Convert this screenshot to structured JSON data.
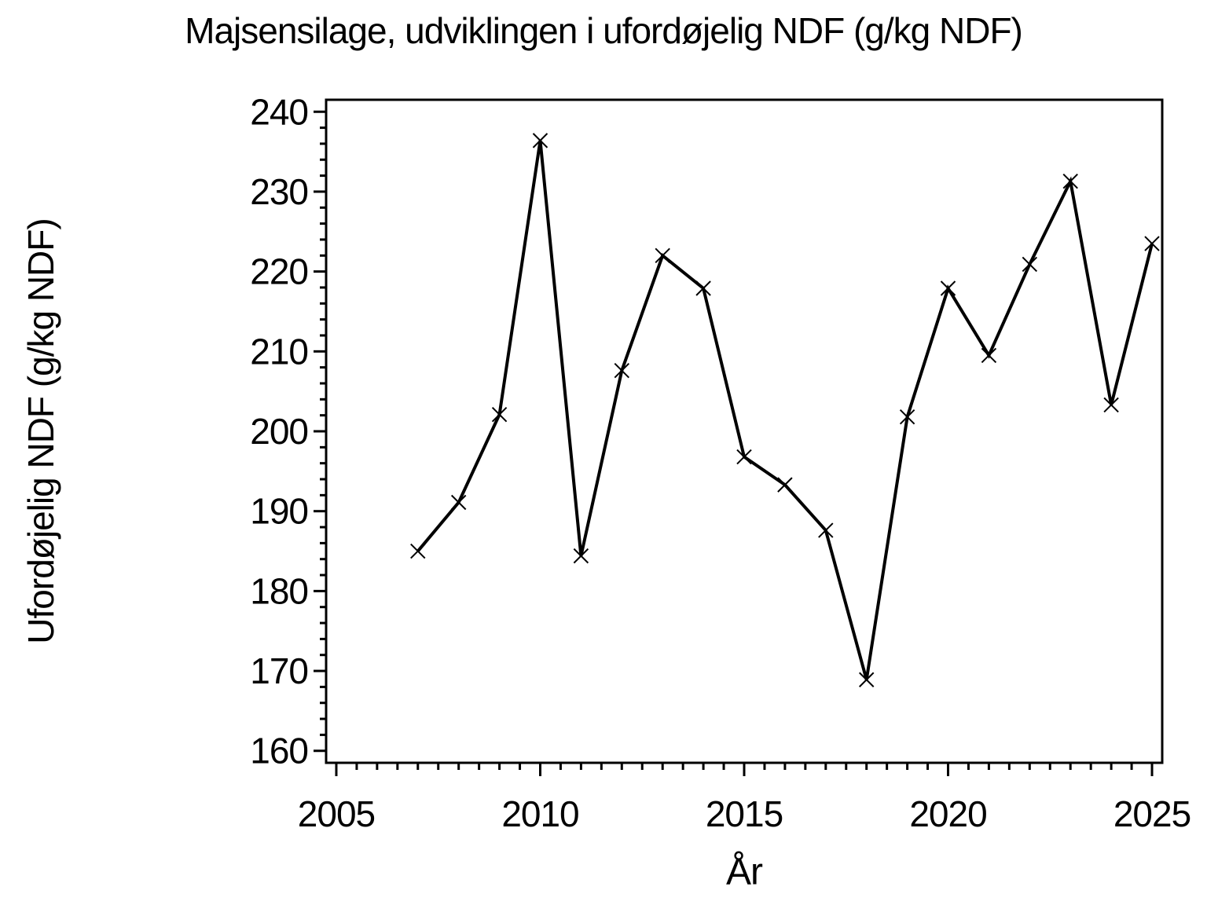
{
  "chart_data": {
    "type": "line",
    "title": "Majsensilage, udviklingen i ufordøjelig NDF (g/kg NDF)",
    "xlabel": "År",
    "ylabel": "Ufordøjelig NDF (g/kg NDF)",
    "x": [
      2007,
      2008,
      2009,
      2010,
      2011,
      2012,
      2013,
      2014,
      2015,
      2016,
      2017,
      2018,
      2019,
      2020,
      2021,
      2022,
      2023,
      2024,
      2025
    ],
    "series": [
      {
        "name": "Ufordøjelig NDF (g/kg NDF)",
        "values": [
          185.0,
          191.1,
          202.1,
          236.4,
          184.4,
          207.6,
          222.0,
          217.9,
          196.8,
          193.3,
          187.6,
          168.9,
          201.8,
          217.9,
          209.5,
          220.9,
          231.3,
          203.3,
          223.5
        ]
      }
    ],
    "marker": "x-cross",
    "line_color": "#000000",
    "background_color": "#ffffff",
    "xlim": [
      2004.75,
      2025.25
    ],
    "ylim": [
      158.5,
      241.5
    ],
    "x_major_ticks": [
      2005,
      2010,
      2015,
      2020,
      2025
    ],
    "x_minor_step": 0.5,
    "y_major_ticks": [
      160,
      170,
      180,
      190,
      200,
      210,
      220,
      230,
      240
    ],
    "y_minor_step": 2,
    "grid": false,
    "legend_position": "none"
  }
}
